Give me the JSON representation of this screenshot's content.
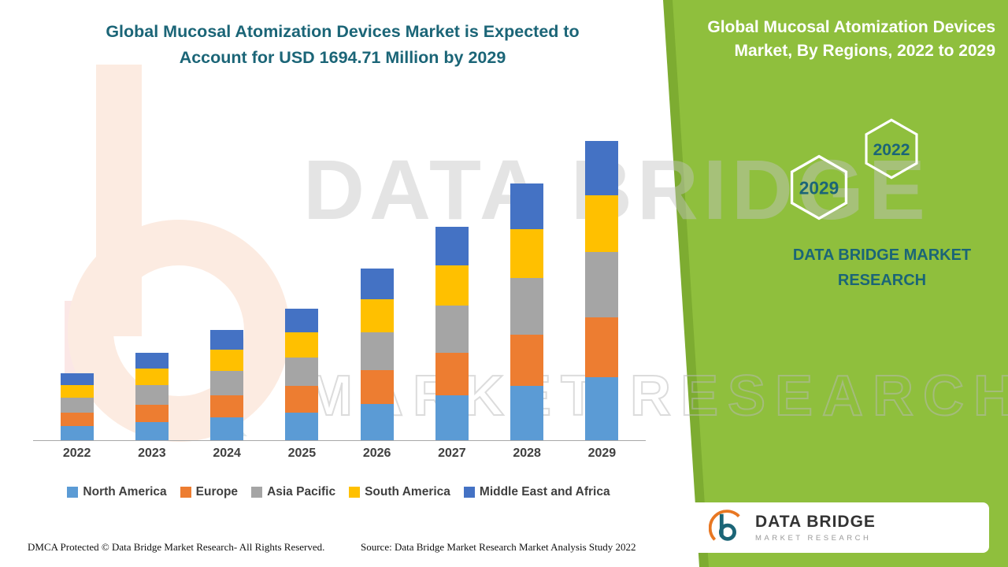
{
  "side_panel": {
    "title": "Global Mucosal Atomization Devices Market, By Regions, 2022 to 2029",
    "hex_back_label": "2029",
    "hex_front_label": "2022",
    "brand_text": "DATA BRIDGE MARKET RESEARCH",
    "bg_color": "#8FBF3D"
  },
  "watermark": {
    "line1": "DATA BRIDGE",
    "line2": "MARKET RESEARCH"
  },
  "footer": {
    "dmca": "DMCA Protected © Data Bridge Market Research- All Rights Reserved.",
    "source": "Source: Data Bridge Market Research Market Analysis Study 2022"
  },
  "logo_card": {
    "name": "DATA BRIDGE",
    "tagline": "MARKET RESEARCH"
  },
  "chart_data": {
    "type": "bar",
    "stacked": true,
    "title": "Global Mucosal Atomization Devices Market is Expected to Account for USD 1694.71 Million by 2029",
    "units": "USD Million",
    "categories": [
      "2022",
      "2023",
      "2024",
      "2025",
      "2026",
      "2027",
      "2028",
      "2029"
    ],
    "series": [
      {
        "name": "North America",
        "color": "#5B9BD5",
        "values": [
          80,
          104,
          131,
          157,
          205,
          254,
          306,
          356
        ]
      },
      {
        "name": "Europe",
        "color": "#ED7D31",
        "values": [
          76,
          99,
          125,
          149,
          194,
          242,
          291,
          339
        ]
      },
      {
        "name": "Asia Pacific",
        "color": "#A5A5A5",
        "values": [
          84,
          109,
          137,
          164,
          214,
          266,
          320,
          372
        ]
      },
      {
        "name": "South America",
        "color": "#FFC000",
        "values": [
          72,
          94,
          119,
          142,
          185,
          230,
          277,
          322
        ]
      },
      {
        "name": "Middle East and Africa",
        "color": "#4472C4",
        "values": [
          68,
          90,
          113,
          134,
          175,
          218,
          261,
          305.71
        ]
      }
    ],
    "ylim": [
      0,
      1800
    ],
    "grid": false,
    "legend_position": "bottom"
  }
}
